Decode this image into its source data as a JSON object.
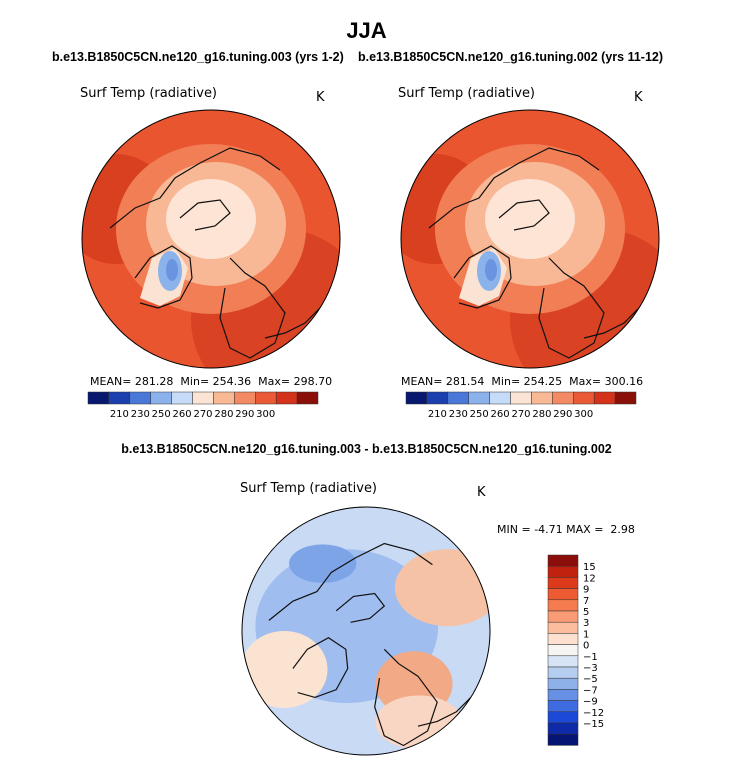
{
  "figure": {
    "title": "JJA",
    "left_run_title": "b.e13.B1850C5CN.ne120_g16.tuning.003 (yrs 1-2)",
    "right_run_title": "b.e13.B1850C5CN.ne120_g16.tuning.002 (yrs 11-12)",
    "diff_title": "b.e13.B1850C5CN.ne120_g16.tuning.003 - b.e13.B1850C5CN.ne120_g16.tuning.002"
  },
  "chart_data": [
    {
      "type": "heatmap",
      "projection": "north-polar-stereographic",
      "title": "b.e13.B1850C5CN.ne120_g16.tuning.003 (yrs 1-2)",
      "variable": "Surf Temp (radiative)",
      "units": "K",
      "mean_label": "MEAN=",
      "mean": "281.28",
      "min_label": "Min=",
      "min": "254.36",
      "max_label": "Max=",
      "max": "298.70",
      "colorbar": {
        "levels": [
          "210",
          "230",
          "250",
          "260",
          "270",
          "280",
          "290",
          "300"
        ],
        "colors": [
          "#08186f",
          "#1c3fb0",
          "#4a78d8",
          "#8cb2ec",
          "#c6dbf7",
          "#fbe4d4",
          "#f9b995",
          "#f48a63",
          "#ea5a36",
          "#d4321a",
          "#8a0f08"
        ]
      }
    },
    {
      "type": "heatmap",
      "projection": "north-polar-stereographic",
      "title": "b.e13.B1850C5CN.ne120_g16.tuning.002 (yrs 11-12)",
      "variable": "Surf Temp (radiative)",
      "units": "K",
      "mean_label": "MEAN=",
      "mean": "281.54",
      "min_label": "Min=",
      "min": "254.25",
      "max_label": "Max=",
      "max": "300.16",
      "colorbar": {
        "levels": [
          "210",
          "230",
          "250",
          "260",
          "270",
          "280",
          "290",
          "300"
        ],
        "colors": [
          "#08186f",
          "#1c3fb0",
          "#4a78d8",
          "#8cb2ec",
          "#c6dbf7",
          "#fbe4d4",
          "#f9b995",
          "#f48a63",
          "#ea5a36",
          "#d4321a",
          "#8a0f08"
        ]
      }
    },
    {
      "type": "heatmap",
      "projection": "north-polar-stereographic",
      "title": "b.e13.B1850C5CN.ne120_g16.tuning.003 - b.e13.B1850C5CN.ne120_g16.tuning.002",
      "variable": "Surf Temp (radiative)",
      "units": "K",
      "min_label": "MIN =",
      "min": "-4.71",
      "max_label": "MAX =",
      "max": "2.98",
      "colorbar": {
        "levels": [
          "15",
          "12",
          "9",
          "7",
          "5",
          "3",
          "1",
          "0",
          "−1",
          "−3",
          "−5",
          "−7",
          "−9",
          "−12",
          "−15"
        ],
        "colors": [
          "#8c0e0a",
          "#c0220f",
          "#dd3a1c",
          "#ee5a31",
          "#f67c4f",
          "#f99c75",
          "#fbbd9e",
          "#fde0cf",
          "#f7f5f3",
          "#d7e4f5",
          "#b5cdee",
          "#8fb1ea",
          "#6690e3",
          "#3f6be0",
          "#1d49d8",
          "#0f2aa8",
          "#061474"
        ]
      }
    }
  ]
}
